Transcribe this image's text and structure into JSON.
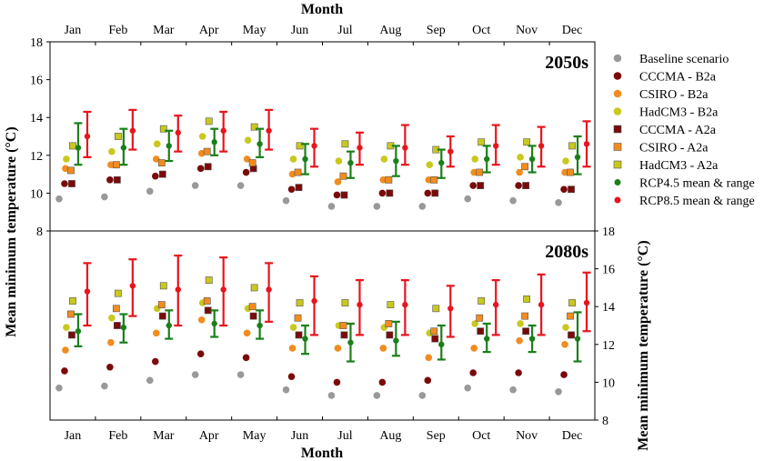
{
  "chart_data": {
    "type": "scatter",
    "title_top": "Month",
    "xlabel": "Month",
    "ylabel_left": "Mean minimum temperature (°C)",
    "ylabel_right": "Mean minimum temperature (°C)",
    "categories": [
      "Jan",
      "Feb",
      "Mar",
      "Apr",
      "May",
      "Jun",
      "Jul",
      "Aug",
      "Sep",
      "Oct",
      "Nov",
      "Dec"
    ],
    "panels": [
      {
        "label": "2050s",
        "ylim": [
          8,
          18
        ],
        "yticks": [
          8,
          10,
          12,
          14,
          16,
          18
        ],
        "series": {
          "baseline": [
            9.7,
            9.8,
            10.1,
            10.4,
            10.4,
            9.6,
            9.3,
            9.3,
            9.3,
            9.7,
            9.6,
            9.5
          ],
          "cccma_b2a": [
            10.5,
            10.7,
            10.9,
            11.3,
            11.1,
            10.2,
            9.9,
            10.0,
            10.0,
            10.4,
            10.4,
            10.2
          ],
          "csiro_b2a": [
            11.3,
            11.5,
            11.8,
            12.1,
            11.8,
            11.0,
            10.6,
            10.7,
            10.7,
            11.1,
            11.1,
            11.1
          ],
          "hadcm3_b2a": [
            11.8,
            12.2,
            12.6,
            13.0,
            12.8,
            11.8,
            11.7,
            11.8,
            11.5,
            11.8,
            11.9,
            11.7
          ],
          "cccma_a2a": [
            10.5,
            10.7,
            11.0,
            11.4,
            11.3,
            10.3,
            9.9,
            10.0,
            10.0,
            10.4,
            10.4,
            10.2
          ],
          "csiro_a2a": [
            11.2,
            11.5,
            11.6,
            12.2,
            11.6,
            11.1,
            10.9,
            10.7,
            10.7,
            11.1,
            11.4,
            11.1
          ],
          "hadcm3_a2a": [
            12.5,
            13.0,
            13.4,
            13.8,
            13.5,
            12.5,
            12.6,
            12.5,
            12.3,
            12.7,
            12.7,
            12.5
          ],
          "rcp45": {
            "mean": [
              12.4,
              12.4,
              12.5,
              12.7,
              12.6,
              11.8,
              11.6,
              11.7,
              11.6,
              11.8,
              11.8,
              11.9
            ],
            "low": [
              11.5,
              11.5,
              11.7,
              12.0,
              11.9,
              11.0,
              10.8,
              10.9,
              10.8,
              11.1,
              11.1,
              11.0
            ],
            "high": [
              13.7,
              13.4,
              13.3,
              13.4,
              13.4,
              12.6,
              12.2,
              12.5,
              12.3,
              12.5,
              12.5,
              13.0
            ]
          },
          "rcp85": {
            "mean": [
              13.0,
              13.3,
              13.2,
              13.3,
              13.3,
              12.5,
              12.4,
              12.4,
              12.2,
              12.5,
              12.5,
              12.6
            ],
            "low": [
              11.9,
              12.3,
              12.2,
              12.2,
              12.3,
              11.4,
              11.5,
              11.5,
              11.4,
              11.5,
              11.4,
              11.4
            ],
            "high": [
              14.3,
              14.4,
              14.1,
              14.3,
              14.4,
              13.4,
              13.2,
              13.6,
              13.0,
              13.6,
              13.5,
              13.8
            ]
          }
        }
      },
      {
        "label": "2080s",
        "ylim": [
          8,
          18
        ],
        "yticks": [
          8,
          10,
          12,
          14,
          16,
          18
        ],
        "series": {
          "baseline": [
            9.7,
            9.8,
            10.1,
            10.4,
            10.4,
            9.6,
            9.3,
            9.3,
            9.3,
            9.7,
            9.6,
            9.5
          ],
          "cccma_b2a": [
            10.6,
            10.8,
            11.1,
            11.5,
            11.3,
            10.3,
            10.0,
            10.0,
            10.1,
            10.5,
            10.5,
            10.4
          ],
          "csiro_b2a": [
            11.7,
            12.1,
            12.6,
            13.3,
            12.6,
            11.8,
            11.8,
            11.8,
            11.3,
            11.8,
            12.2,
            12.0
          ],
          "hadcm3_b2a": [
            12.9,
            13.4,
            13.9,
            14.2,
            13.9,
            12.9,
            13.0,
            12.9,
            12.6,
            13.1,
            13.1,
            12.9
          ],
          "cccma_a2a": [
            12.5,
            13.0,
            13.5,
            13.8,
            13.5,
            12.5,
            12.5,
            12.5,
            12.3,
            12.7,
            12.7,
            12.5
          ],
          "csiro_a2a": [
            13.6,
            13.9,
            14.1,
            14.3,
            14.0,
            13.4,
            13.0,
            13.1,
            12.7,
            13.4,
            13.5,
            13.5
          ],
          "hadcm3_a2a": [
            14.3,
            14.7,
            15.1,
            15.4,
            15.0,
            14.2,
            14.2,
            14.1,
            13.9,
            14.3,
            14.4,
            14.2
          ],
          "rcp45": {
            "mean": [
              12.7,
              12.9,
              13.0,
              13.1,
              13.0,
              12.3,
              12.1,
              12.2,
              12.0,
              12.3,
              12.3,
              12.3
            ],
            "low": [
              11.9,
              12.1,
              12.3,
              12.4,
              12.3,
              11.5,
              11.1,
              11.4,
              11.2,
              11.6,
              11.6,
              11.1
            ],
            "high": [
              13.6,
              13.6,
              13.8,
              13.8,
              13.8,
              13.0,
              13.1,
              13.2,
              13.0,
              13.1,
              13.0,
              13.7
            ]
          },
          "rcp85": {
            "mean": [
              14.8,
              15.1,
              14.9,
              14.9,
              14.9,
              14.3,
              14.1,
              14.1,
              13.9,
              14.1,
              14.1,
              14.2
            ],
            "low": [
              13.0,
              13.5,
              13.0,
              13.0,
              13.2,
              12.5,
              12.5,
              12.5,
              12.4,
              12.5,
              12.5,
              12.7
            ],
            "high": [
              16.3,
              16.5,
              16.7,
              16.6,
              16.3,
              15.6,
              15.4,
              15.4,
              15.1,
              15.4,
              15.7,
              15.8
            ]
          }
        }
      }
    ],
    "legend": [
      {
        "key": "baseline",
        "label": "Baseline scenario",
        "marker": "circle",
        "color": "#999999"
      },
      {
        "key": "cccma_b2a",
        "label": "CCCMA - B2a",
        "marker": "circle",
        "color": "#7a0a0a"
      },
      {
        "key": "csiro_b2a",
        "label": "CSIRO - B2a",
        "marker": "circle",
        "color": "#f28c1e"
      },
      {
        "key": "hadcm3_b2a",
        "label": "HadCM3 - B2a",
        "marker": "circle",
        "color": "#c8c81e"
      },
      {
        "key": "cccma_a2a",
        "label": "CCCMA - A2a",
        "marker": "square",
        "color": "#7a0a0a"
      },
      {
        "key": "csiro_a2a",
        "label": "CSIRO - A2a",
        "marker": "square",
        "color": "#f28c1e"
      },
      {
        "key": "hadcm3_a2a",
        "label": "HadCM3 - A2a",
        "marker": "square",
        "color": "#c8c81e"
      },
      {
        "key": "rcp45",
        "label": "RCP4.5 mean & range",
        "marker": "errorbar",
        "color": "#1a7f1a"
      },
      {
        "key": "rcp85",
        "label": "RCP8.5 mean & range",
        "marker": "errorbar",
        "color": "#e8141e"
      }
    ]
  }
}
